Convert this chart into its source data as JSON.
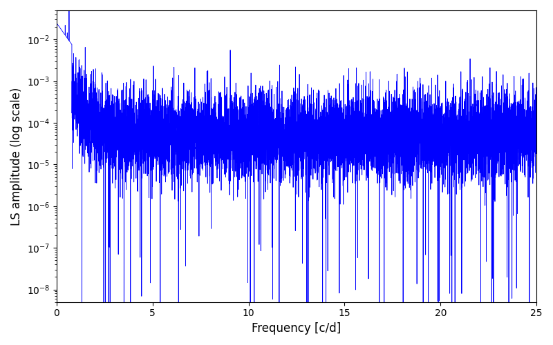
{
  "title": "",
  "xlabel": "Frequency [c/d]",
  "ylabel": "LS amplitude (log scale)",
  "xlim": [
    0,
    25
  ],
  "ylim": [
    5e-09,
    0.05
  ],
  "line_color": "#0000ff",
  "line_width": 0.6,
  "background_color": "#ffffff",
  "seed": 42,
  "n_points": 8000,
  "freq_max": 25.0
}
